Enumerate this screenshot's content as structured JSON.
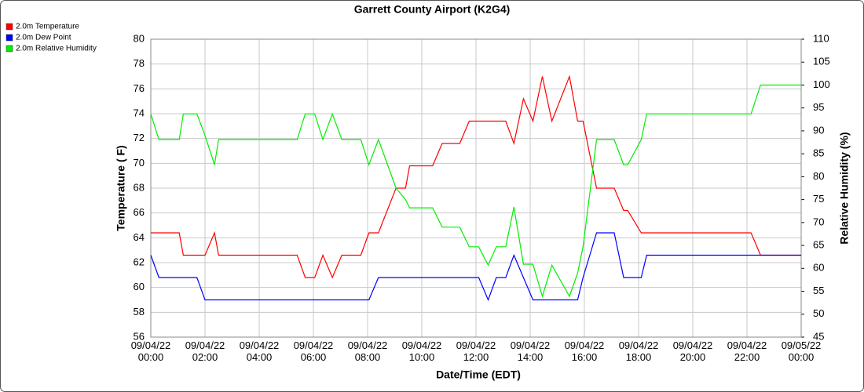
{
  "chart_data": {
    "type": "line",
    "title": "Garrett County Airport (K2G4)",
    "x_label": "Date/Time (EDT)",
    "y_label": "Temperature ( F)",
    "y2_label": "Relative Humidity (%)",
    "x": [
      "09/04/22 00:00",
      "09/04/22 00:18",
      "09/04/22 01:03",
      "09/04/22 01:12",
      "09/04/22 01:42",
      "09/04/22 02:00",
      "09/04/22 02:21",
      "09/04/22 02:30",
      "09/04/22 05:24",
      "09/04/22 05:42",
      "09/04/22 06:03",
      "09/04/22 06:21",
      "09/04/22 06:42",
      "09/04/22 07:03",
      "09/04/22 07:45",
      "09/04/22 08:03",
      "09/04/22 08:24",
      "09/04/22 09:03",
      "09/04/22 09:24",
      "09/04/22 09:33",
      "09/04/22 10:24",
      "09/04/22 10:45",
      "09/04/22 11:24",
      "09/04/22 11:45",
      "09/04/22 12:06",
      "09/04/22 12:27",
      "09/04/22 12:45",
      "09/04/22 13:06",
      "09/04/22 13:24",
      "09/04/22 13:45",
      "09/04/22 14:06",
      "09/04/22 14:27",
      "09/04/22 14:48",
      "09/04/22 15:27",
      "09/04/22 15:45",
      "09/04/22 15:57",
      "09/04/22 16:27",
      "09/04/22 17:06",
      "09/04/22 17:27",
      "09/04/22 17:36",
      "09/04/22 18:06",
      "09/04/22 18:18",
      "09/04/22 22:09",
      "09/04/22 22:30",
      "09/05/22 00:00"
    ],
    "series": [
      {
        "name": "2.0m Temperature",
        "color": "#ff0000",
        "values": [
          64.4,
          64.4,
          64.4,
          62.6,
          62.6,
          62.6,
          64.4,
          62.6,
          62.6,
          60.8,
          60.8,
          62.6,
          60.8,
          62.6,
          62.6,
          64.4,
          64.4,
          68,
          68,
          69.8,
          69.8,
          71.6,
          71.6,
          73.4,
          73.4,
          73.4,
          73.4,
          73.4,
          71.6,
          75.2,
          73.4,
          77,
          73.4,
          77,
          73.4,
          73.4,
          68,
          68,
          66.2,
          66.2,
          64.4,
          64.4,
          64.4,
          62.6,
          62.6
        ]
      },
      {
        "name": "2.0m Dew Point",
        "color": "#0000ff",
        "values": [
          62.6,
          60.8,
          60.8,
          60.8,
          60.8,
          59,
          59,
          59,
          59,
          59,
          59,
          59,
          59,
          59,
          59,
          59,
          60.8,
          60.8,
          60.8,
          60.8,
          60.8,
          60.8,
          60.8,
          60.8,
          60.8,
          59,
          60.8,
          60.8,
          62.6,
          60.8,
          59,
          59,
          59,
          59,
          59,
          60.8,
          64.4,
          64.4,
          60.8,
          60.8,
          60.8,
          62.6,
          62.6,
          62.6,
          62.6
        ]
      },
      {
        "name": "2.0m Relative Humidity",
        "color": "#00ee00",
        "axis": "y2",
        "values": [
          93.7,
          88.1,
          88.1,
          93.7,
          93.7,
          89,
          82.6,
          88.1,
          88.1,
          93.7,
          93.7,
          88.1,
          93.7,
          88.1,
          88.1,
          82.6,
          88.1,
          77.5,
          75,
          73.2,
          73.2,
          69,
          69,
          64.7,
          64.7,
          60.7,
          64.7,
          64.7,
          73.4,
          60.9,
          60.9,
          53.9,
          60.7,
          53.9,
          59,
          64.7,
          88.1,
          88.1,
          82.6,
          82.6,
          88.1,
          93.7,
          93.7,
          100,
          100
        ]
      }
    ],
    "xlim": [
      "09/04/22 00:00",
      "09/05/22 00:00"
    ],
    "xticks": [
      "09/04/22 00:00",
      "09/04/22 02:00",
      "09/04/22 04:00",
      "09/04/22 06:00",
      "09/04/22 08:00",
      "09/04/22 10:00",
      "09/04/22 12:00",
      "09/04/22 14:00",
      "09/04/22 16:00",
      "09/04/22 18:00",
      "09/04/22 20:00",
      "09/04/22 22:00",
      "09/05/22 00:00"
    ],
    "ylim": [
      56,
      80
    ],
    "yticks": [
      56,
      58,
      60,
      62,
      64,
      66,
      68,
      70,
      72,
      74,
      76,
      78,
      80
    ],
    "y2lim": [
      45,
      110
    ],
    "y2ticks": [
      45,
      50,
      55,
      60,
      65,
      70,
      75,
      80,
      85,
      90,
      95,
      100,
      105,
      110
    ],
    "grid": true,
    "legend": "top-left"
  }
}
